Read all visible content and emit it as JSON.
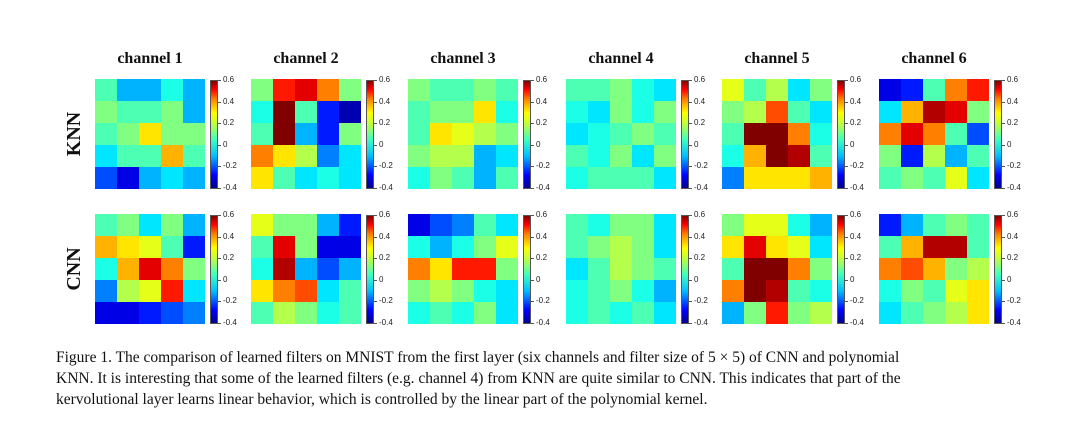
{
  "columns": [
    "channel 1",
    "channel 2",
    "channel 3",
    "channel 4",
    "channel 5",
    "channel 6"
  ],
  "rows": [
    {
      "label": "KNN",
      "grids": [
        [
          [
            0.05,
            -0.1,
            -0.1,
            0.0,
            -0.1
          ],
          [
            0.1,
            0.05,
            0.05,
            0.1,
            -0.1
          ],
          [
            0.05,
            0.1,
            0.25,
            0.1,
            0.1
          ],
          [
            -0.05,
            0.05,
            0.05,
            0.3,
            0.05
          ],
          [
            -0.2,
            -0.3,
            -0.1,
            -0.05,
            -0.1
          ]
        ],
        [
          [
            0.1,
            0.45,
            0.5,
            0.35,
            0.1
          ],
          [
            0.0,
            0.6,
            0.05,
            -0.25,
            -0.35
          ],
          [
            0.05,
            0.6,
            -0.1,
            -0.25,
            0.1
          ],
          [
            0.35,
            0.25,
            0.15,
            -0.15,
            -0.05
          ],
          [
            0.25,
            0.05,
            -0.05,
            0.0,
            -0.05
          ]
        ],
        [
          [
            0.1,
            0.05,
            0.05,
            0.1,
            0.05
          ],
          [
            0.05,
            0.1,
            0.1,
            0.25,
            0.0
          ],
          [
            0.05,
            0.25,
            0.2,
            0.15,
            0.1
          ],
          [
            0.1,
            0.15,
            0.15,
            -0.1,
            -0.05
          ],
          [
            0.0,
            0.1,
            0.05,
            -0.1,
            0.05
          ]
        ],
        [
          [
            0.05,
            0.05,
            0.1,
            0.0,
            -0.05
          ],
          [
            0.0,
            -0.05,
            0.1,
            0.0,
            0.1
          ],
          [
            -0.05,
            0.0,
            0.05,
            0.1,
            0.05
          ],
          [
            0.05,
            0.0,
            0.1,
            -0.05,
            0.1
          ],
          [
            0.0,
            0.05,
            0.05,
            0.05,
            -0.05
          ]
        ],
        [
          [
            0.2,
            0.05,
            0.15,
            -0.05,
            0.1
          ],
          [
            0.1,
            0.15,
            0.4,
            0.05,
            -0.05
          ],
          [
            0.05,
            0.6,
            0.6,
            0.35,
            0.0
          ],
          [
            0.0,
            0.3,
            0.6,
            0.55,
            0.05
          ],
          [
            -0.15,
            0.25,
            0.25,
            0.25,
            0.3
          ]
        ],
        [
          [
            -0.3,
            -0.25,
            0.05,
            0.35,
            0.45
          ],
          [
            -0.05,
            0.3,
            0.55,
            0.5,
            0.1
          ],
          [
            0.35,
            0.5,
            0.35,
            0.05,
            -0.2
          ],
          [
            0.1,
            -0.25,
            0.15,
            -0.1,
            0.05
          ],
          [
            0.05,
            0.1,
            0.05,
            0.2,
            -0.05
          ]
        ]
      ]
    },
    {
      "label": "CNN",
      "grids": [
        [
          [
            0.05,
            0.1,
            -0.05,
            0.1,
            -0.1
          ],
          [
            0.3,
            0.25,
            0.2,
            0.05,
            -0.25
          ],
          [
            0.0,
            0.3,
            0.5,
            0.35,
            0.1
          ],
          [
            -0.15,
            0.15,
            0.2,
            0.45,
            -0.05
          ],
          [
            -0.3,
            -0.3,
            -0.25,
            -0.2,
            -0.15
          ]
        ],
        [
          [
            0.2,
            0.1,
            0.1,
            -0.1,
            -0.25
          ],
          [
            0.05,
            0.5,
            0.1,
            -0.3,
            -0.3
          ],
          [
            0.0,
            0.55,
            -0.1,
            -0.2,
            -0.1
          ],
          [
            0.25,
            0.35,
            0.4,
            -0.05,
            0.05
          ],
          [
            0.05,
            0.15,
            0.1,
            0.0,
            0.05
          ]
        ],
        [
          [
            -0.3,
            -0.2,
            -0.15,
            0.05,
            -0.05
          ],
          [
            0.0,
            -0.1,
            0.0,
            0.1,
            0.2
          ],
          [
            0.35,
            0.25,
            0.45,
            0.45,
            0.1
          ],
          [
            0.1,
            0.15,
            0.1,
            0.0,
            -0.05
          ],
          [
            0.0,
            0.05,
            0.0,
            0.1,
            -0.05
          ]
        ],
        [
          [
            0.05,
            0.0,
            0.1,
            0.1,
            -0.05
          ],
          [
            0.05,
            0.1,
            0.15,
            0.1,
            -0.05
          ],
          [
            -0.05,
            0.05,
            0.15,
            0.1,
            0.05
          ],
          [
            0.0,
            0.05,
            0.1,
            0.0,
            -0.1
          ],
          [
            0.0,
            0.05,
            0.0,
            0.05,
            -0.05
          ]
        ],
        [
          [
            0.1,
            0.2,
            0.2,
            0.0,
            -0.1
          ],
          [
            0.25,
            0.5,
            0.25,
            0.2,
            -0.05
          ],
          [
            0.05,
            0.6,
            0.6,
            0.35,
            0.1
          ],
          [
            0.35,
            0.6,
            0.55,
            0.05,
            0.0
          ],
          [
            -0.1,
            0.1,
            0.45,
            0.1,
            0.15
          ]
        ],
        [
          [
            -0.25,
            -0.1,
            0.05,
            0.1,
            0.05
          ],
          [
            0.05,
            0.3,
            0.55,
            0.55,
            0.05
          ],
          [
            0.35,
            0.4,
            0.3,
            0.1,
            0.15
          ],
          [
            0.0,
            0.1,
            0.05,
            0.2,
            0.25
          ],
          [
            -0.05,
            0.05,
            0.1,
            0.15,
            0.25
          ]
        ]
      ]
    }
  ],
  "colorbar_ticks": [
    "0.6",
    "0.4",
    "0.2",
    "0",
    "-0.2",
    "-0.4"
  ],
  "colorbar_range": [
    -0.4,
    0.6
  ],
  "caption": {
    "line1": "Figure 1. The comparison of learned filters on MNIST from the first layer (six channels and filter size of 5 × 5) of CNN and polynomial",
    "line2": "KNN. It is interesting that some of the learned filters (e.g. channel 4) from KNN are quite similar to CNN. This indicates that part of the",
    "line3": "kervolutional layer learns linear behavior, which is controlled by the linear part of the polynomial kernel."
  }
}
